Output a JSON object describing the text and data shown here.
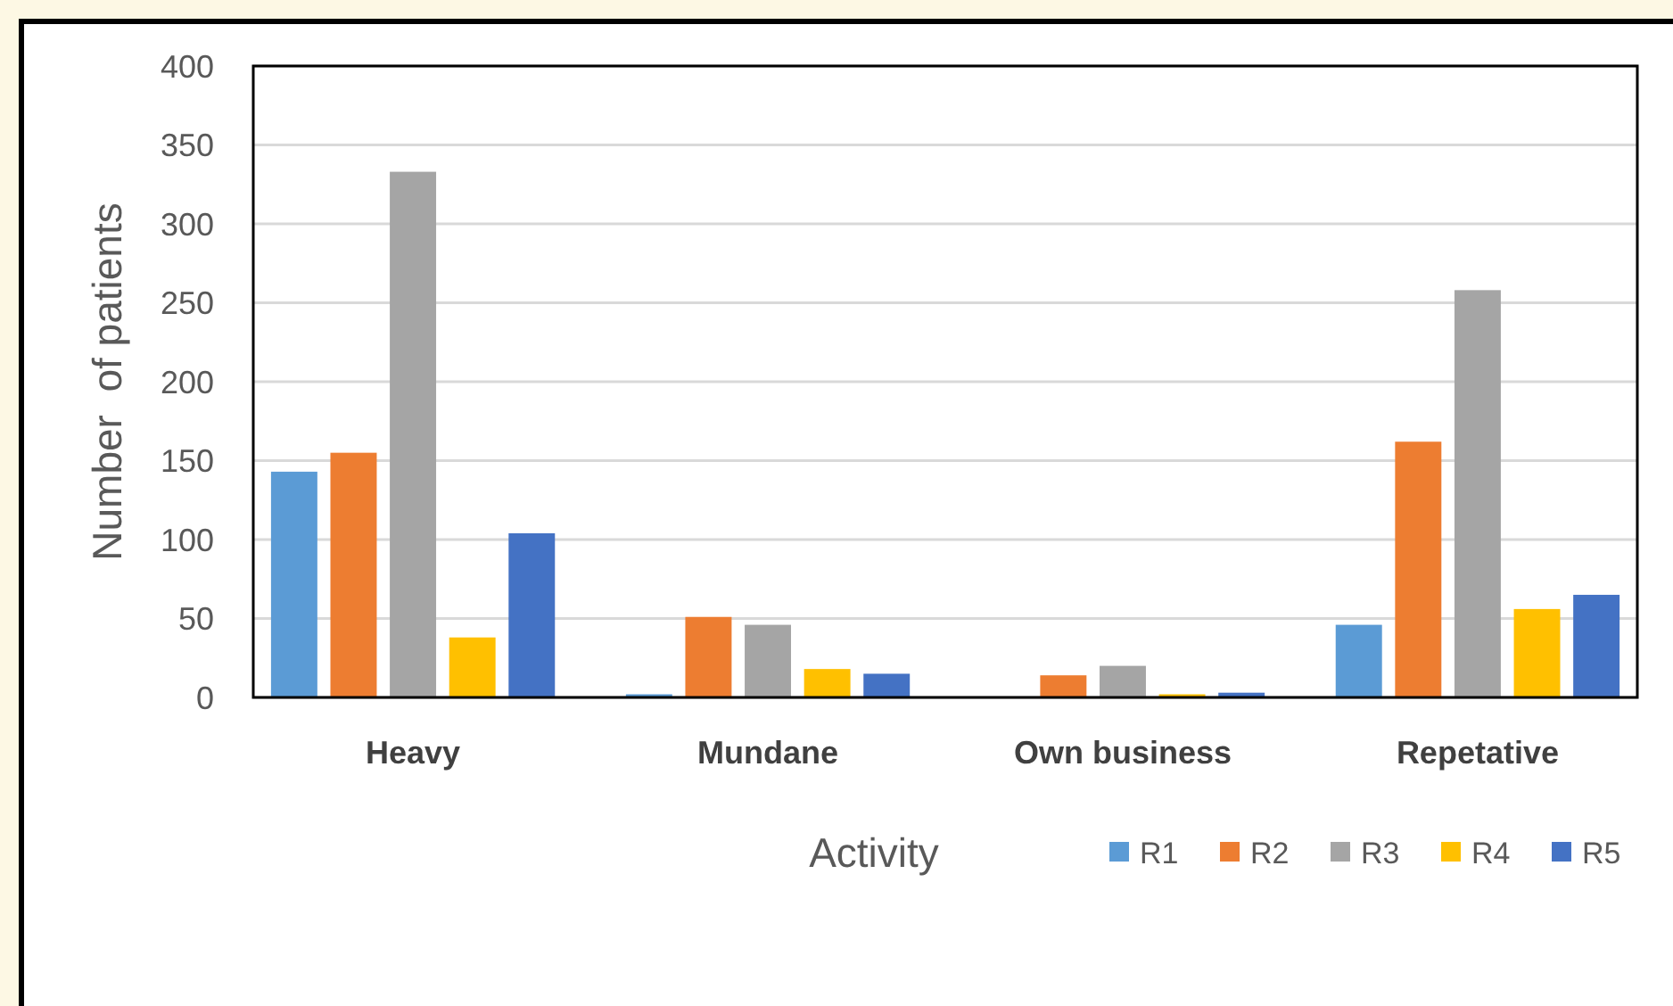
{
  "chart_data": {
    "type": "bar",
    "xlabel": "Activity",
    "ylabel": "Number  of patients",
    "categories": [
      "Heavy",
      "Mundane",
      "Own business",
      "Repetative"
    ],
    "series": [
      {
        "name": "R1",
        "color": "#5b9bd5",
        "values": [
          143,
          2,
          0,
          46
        ]
      },
      {
        "name": "R2",
        "color": "#ed7d31",
        "values": [
          155,
          51,
          14,
          162
        ]
      },
      {
        "name": "R3",
        "color": "#a5a5a5",
        "values": [
          333,
          46,
          20,
          258
        ]
      },
      {
        "name": "R4",
        "color": "#ffc000",
        "values": [
          38,
          18,
          2,
          56
        ]
      },
      {
        "name": "R5",
        "color": "#4472c4",
        "values": [
          104,
          15,
          3,
          65
        ]
      }
    ],
    "ylim": [
      0,
      400
    ],
    "yticks": [
      0,
      50,
      100,
      150,
      200,
      250,
      300,
      350,
      400
    ],
    "grid": "y",
    "legend": "bottom right"
  }
}
